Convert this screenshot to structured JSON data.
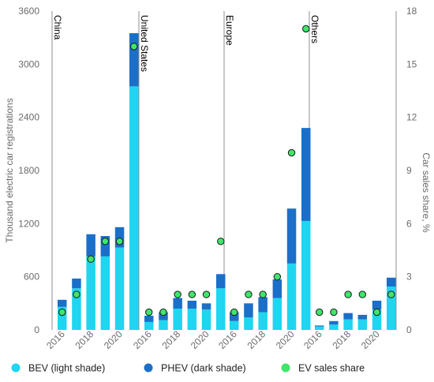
{
  "chart_data": {
    "type": "bar",
    "ylabel": "Thousand electric car registrations",
    "y2label": "Car sales share, %",
    "ylim": [
      0,
      3600
    ],
    "y2lim": [
      0,
      18
    ],
    "yticks": [
      "0",
      "600",
      "1200",
      "1800",
      "2400",
      "3000",
      "3600"
    ],
    "y2ticks": [
      "0",
      "3",
      "6",
      "9",
      "12",
      "15",
      "18"
    ],
    "years": [
      2016,
      2017,
      2018,
      2019,
      2020,
      2021
    ],
    "xtick_labels": [
      "2016",
      "2018",
      "2020"
    ],
    "grid": false,
    "legend_position": "bottom",
    "legend": {
      "bev": "BEV (light shade)",
      "phev": "PHEV (dark shade)",
      "share": "EV sales share"
    },
    "colors": {
      "bev": "#1fd5f0",
      "phev": "#1b6fc9",
      "share_fill": "#3ee66a",
      "share_stroke": "#1a1a1a",
      "panel_line": "#8f8f8f"
    },
    "panels": [
      {
        "name": "China",
        "bev": [
          260,
          470,
          830,
          830,
          930,
          2750
        ],
        "phev": [
          80,
          110,
          250,
          230,
          230,
          600
        ],
        "share": [
          1.0,
          2.0,
          4.0,
          5.0,
          5.0,
          16.0
        ]
      },
      {
        "name": "United States",
        "bev": [
          90,
          110,
          240,
          240,
          230,
          470
        ],
        "phev": [
          70,
          90,
          120,
          90,
          70,
          160
        ],
        "share": [
          1.0,
          1.0,
          2.0,
          2.0,
          2.0,
          5.0
        ]
      },
      {
        "name": "Europe",
        "bev": [
          100,
          140,
          200,
          360,
          750,
          1230
        ],
        "phev": [
          100,
          160,
          170,
          210,
          620,
          1050
        ],
        "share": [
          1.0,
          2.0,
          2.0,
          3.0,
          10.0,
          17.0
        ]
      },
      {
        "name": "Others",
        "bev": [
          40,
          60,
          120,
          120,
          230,
          490
        ],
        "phev": [
          10,
          40,
          70,
          50,
          100,
          100
        ],
        "share": [
          1.0,
          1.0,
          2.0,
          2.0,
          1.0,
          2.0
        ]
      }
    ]
  }
}
